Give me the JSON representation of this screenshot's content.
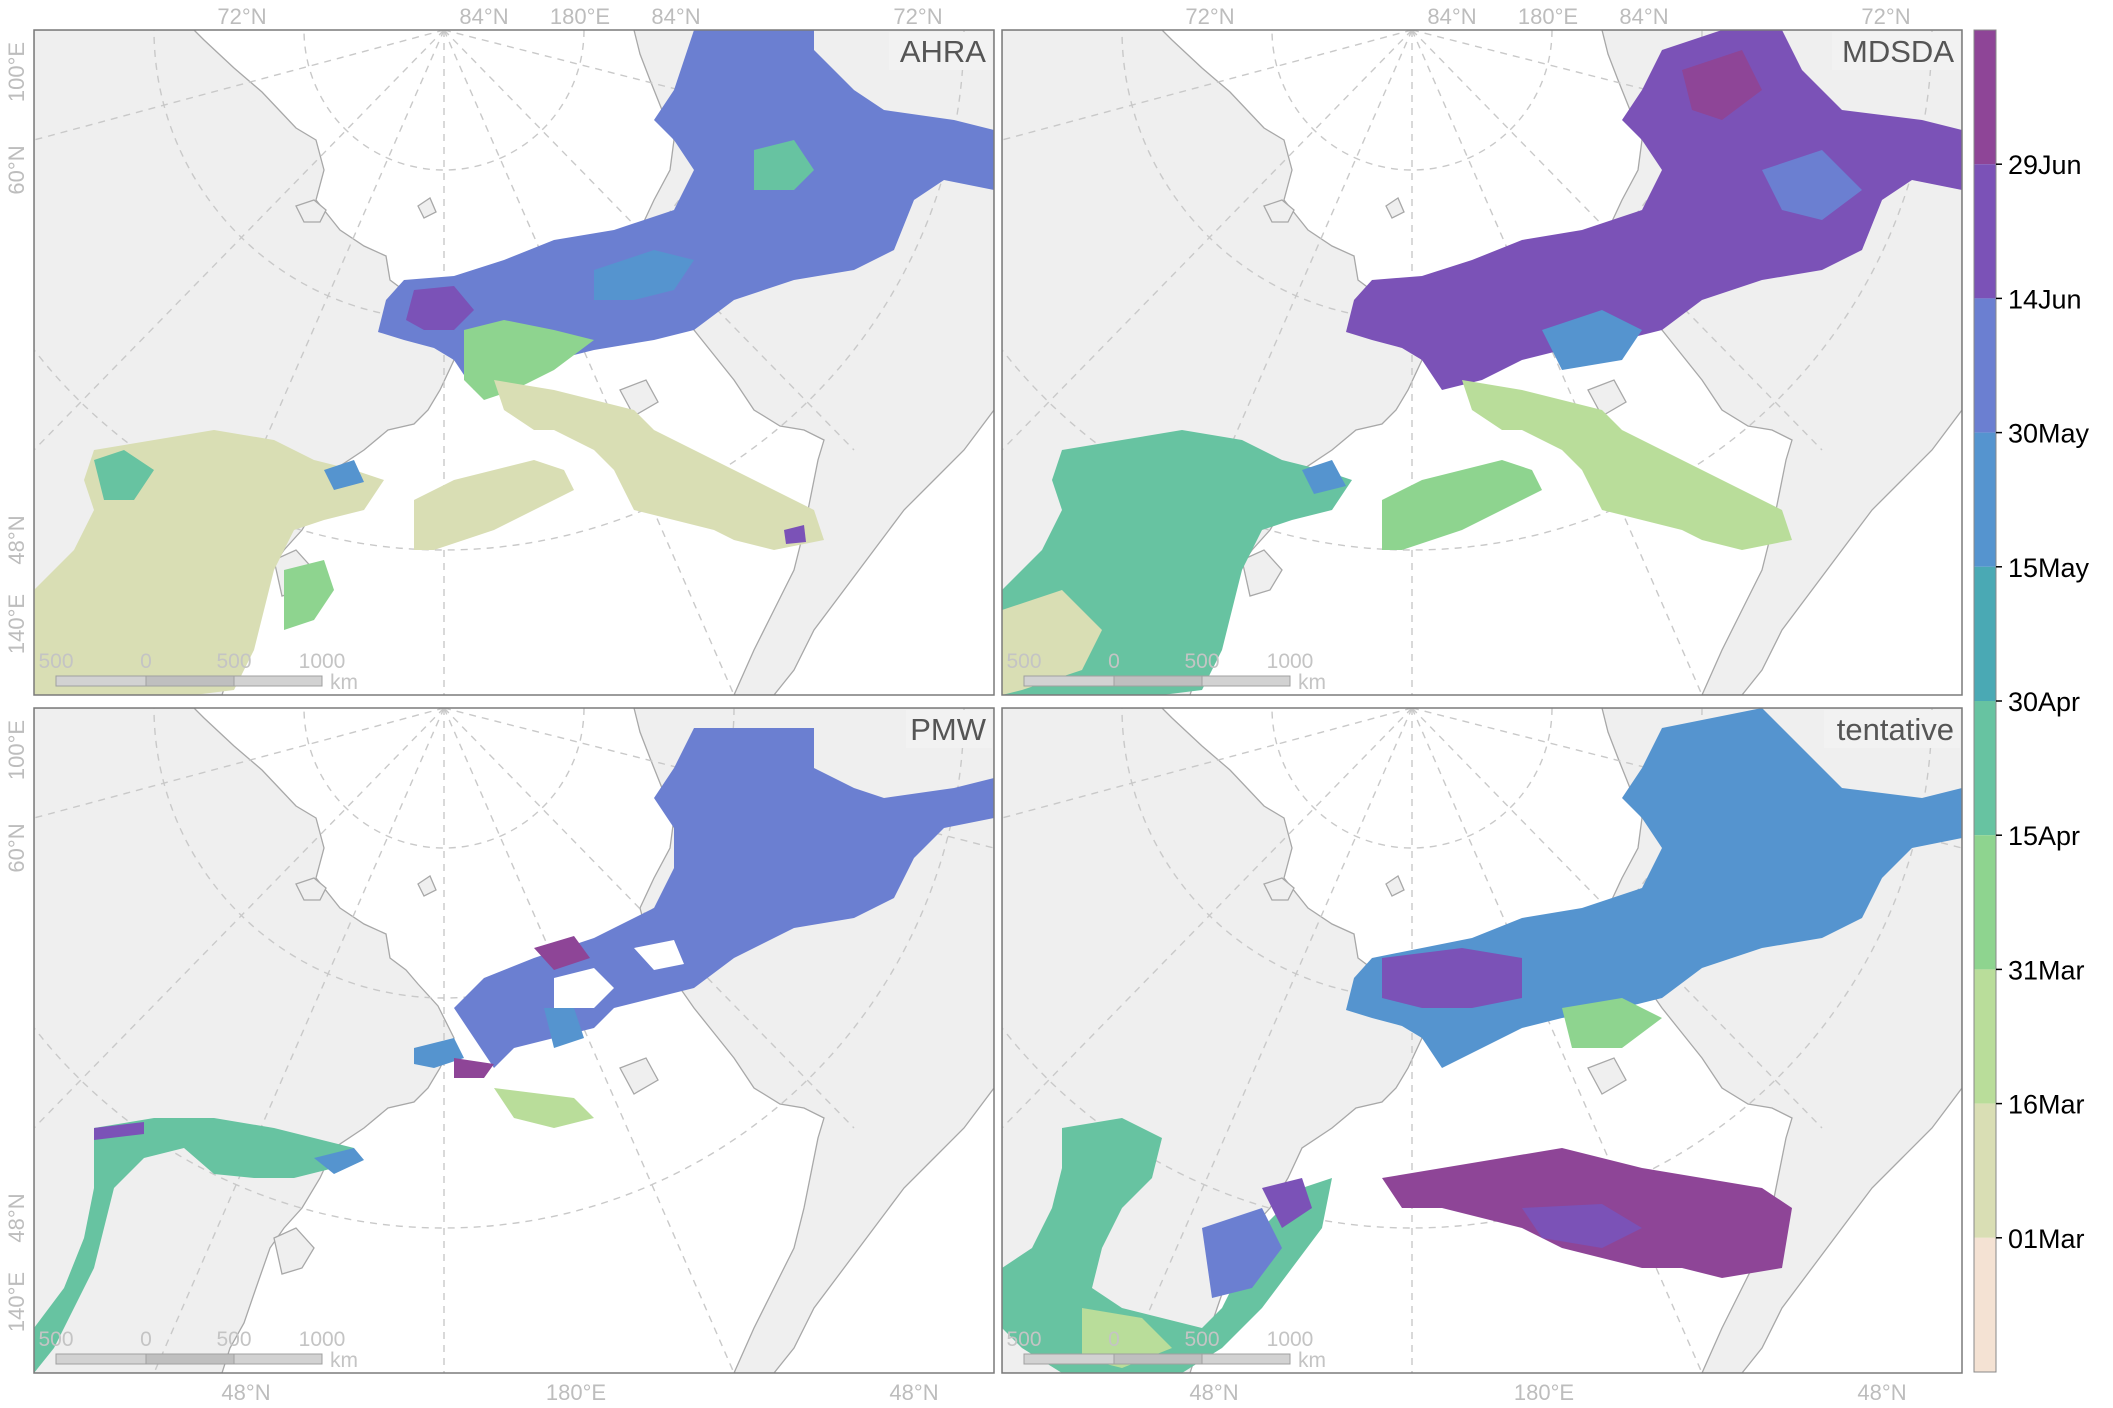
{
  "figure": {
    "panels": [
      {
        "id": "ahra",
        "tag": "AHRA"
      },
      {
        "id": "mdsda",
        "tag": "MDSDA"
      },
      {
        "id": "pmw",
        "tag": "PMW"
      },
      {
        "id": "tentative",
        "tag": "tentative"
      }
    ],
    "top_axis_labels": [
      "72°N",
      "84°N",
      "180°E",
      "84°N",
      "72°N"
    ],
    "bottom_axis_labels": [
      "48°N",
      "180°E",
      "48°N"
    ],
    "left_axis_labels": [
      "100°E",
      "60°N",
      "48°N",
      "140°E"
    ],
    "scale_bar": {
      "ticks": [
        "500",
        "0",
        "500",
        "1000"
      ],
      "unit": "km"
    },
    "legend": {
      "labels": [
        "29Jun",
        "14Jun",
        "30May",
        "15May",
        "30Apr",
        "15Apr",
        "31Mar",
        "16Mar",
        "01Mar"
      ],
      "colors": [
        "#8e4597",
        "#7b52b7",
        "#6b7fd1",
        "#5594cf",
        "#4aa9b4",
        "#67c3a1",
        "#8ed48f",
        "#b9dd9a",
        "#d9deb4",
        "#f4e2d3"
      ]
    },
    "colors": {
      "land": "#efefef",
      "coast": "#a8a8a8",
      "graticule": "#c9c9c9"
    }
  }
}
